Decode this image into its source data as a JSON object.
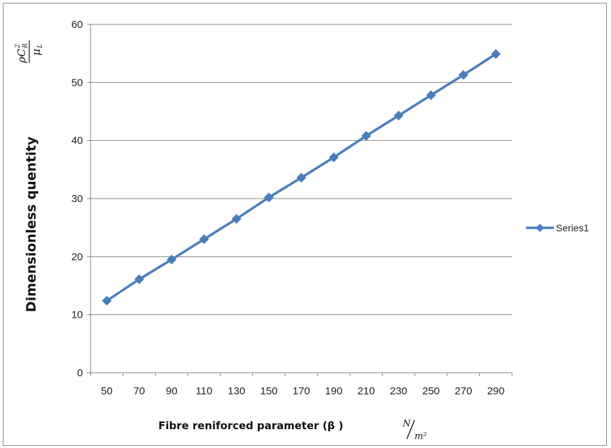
{
  "chart_data": {
    "type": "line",
    "x": [
      50,
      70,
      90,
      110,
      130,
      150,
      170,
      190,
      210,
      230,
      250,
      270,
      290
    ],
    "series": [
      {
        "name": "Series1",
        "values": [
          12.4,
          16.1,
          19.5,
          23.0,
          26.5,
          30.2,
          33.6,
          37.1,
          40.8,
          44.3,
          47.8,
          51.3,
          54.9
        ],
        "color": "#4a7ebb",
        "marker": "diamond"
      }
    ],
    "ylim": [
      0,
      60
    ],
    "yticks": [
      "0",
      "10",
      "20",
      "30",
      "40",
      "50",
      "60"
    ],
    "xticks": [
      "50",
      "70",
      "90",
      "110",
      "130",
      "150",
      "170",
      "190",
      "210",
      "230",
      "250",
      "270",
      "290"
    ],
    "xlabel": "Fibre reniforced parameter (β )",
    "xlabel_unit_numerator": "N",
    "xlabel_unit_denominator": "m²",
    "ylabel": "Dimensionless quentity",
    "ylabel_fraction_numerator": "ρC",
    "ylabel_fraction_numerator_superscript": "2",
    "ylabel_fraction_numerator_subscript": "R",
    "ylabel_fraction_denominator": "μ",
    "ylabel_fraction_denominator_subscript": "L",
    "legend": {
      "placement": "right",
      "entries": [
        "Series1"
      ]
    },
    "grid": "horizontal"
  }
}
